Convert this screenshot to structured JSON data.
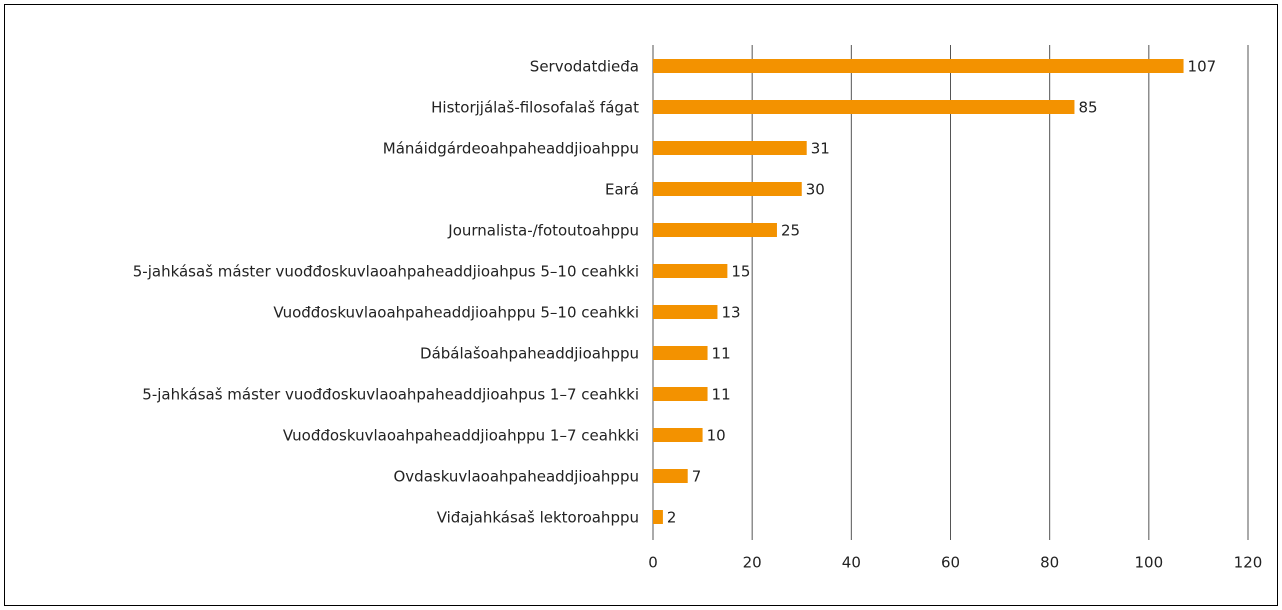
{
  "chart_data": {
    "type": "hbar",
    "categories": [
      "Servodatdieđa",
      "Historjjálaš-filosofalaš fágat",
      "Mánáidgárdeoahpaheaddjioahppu",
      "Eará",
      "Journalista-/fotoutoahppu",
      "5-jahkásaš máster vuođđoskuvlaoahpaheaddjioahpus 5–10 ceahkki",
      "Vuođđoskuvlaoahpaheaddjioahppu 5–10 ceahkki",
      "Dábálašoahpaheaddjioahppu",
      "5-jahkásaš máster vuođđoskuvlaoahpaheaddjioahpus 1–7 ceahkki",
      "Vuođđoskuvlaoahpaheaddjioahppu 1–7 ceahkki",
      "Ovdaskuvlaoahpaheaddjioahppu",
      "Viđajahkásaš lektoroahppu"
    ],
    "values": [
      107,
      85,
      31,
      30,
      25,
      15,
      13,
      11,
      11,
      10,
      7,
      2
    ],
    "color": "#f39200",
    "xlim": [
      0,
      120
    ],
    "xticks": [
      0,
      20,
      40,
      60,
      80,
      100,
      120
    ],
    "grid": true
  }
}
